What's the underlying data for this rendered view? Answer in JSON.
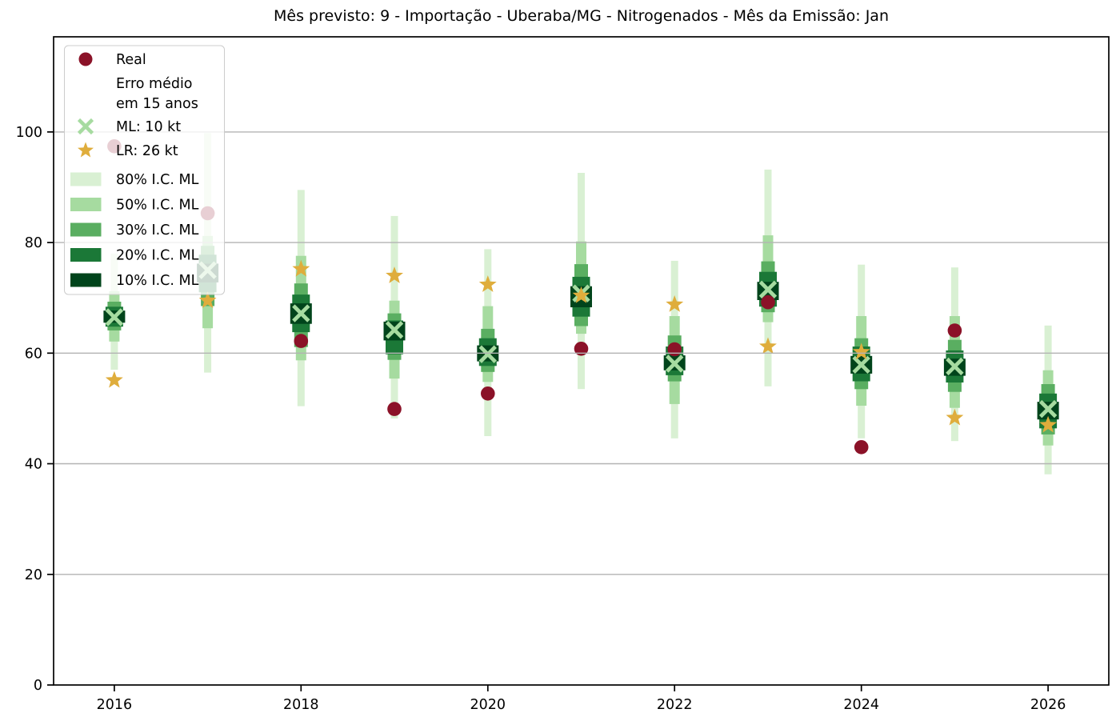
{
  "title": "Mês previsto: 9 - Importação - Uberaba/MG - Nitrogenados - Mês da Emissão: Jan",
  "colors": {
    "real": "#8b1228",
    "ml": "#a6dba0",
    "lr": "#dfad3c",
    "ci80": "#d9f0d3",
    "ci50": "#a6dba0",
    "ci30": "#5aae61",
    "ci20": "#1b7837",
    "ci10": "#00441b",
    "grid": "#b3b3b3",
    "spine": "#000000",
    "legend_border": "#cccccc"
  },
  "legend": {
    "items": [
      {
        "label": "Real",
        "marker": "circle",
        "color": "#8b1228"
      },
      {
        "label": "Erro médio em 15 anos",
        "lines": [
          "Erro médio",
          "em 15 anos"
        ],
        "marker": "none"
      },
      {
        "label": "ML: 10 kt",
        "marker": "x",
        "color": "#a6dba0"
      },
      {
        "label": "LR: 26 kt",
        "marker": "star",
        "color": "#dfad3c"
      },
      {
        "label": "80% I.C. ML",
        "marker": "patch",
        "color": "#d9f0d3"
      },
      {
        "label": "50% I.C. ML",
        "marker": "patch",
        "color": "#a6dba0"
      },
      {
        "label": "30% I.C. ML",
        "marker": "patch",
        "color": "#5aae61"
      },
      {
        "label": "20% I.C. ML",
        "marker": "patch",
        "color": "#1b7837"
      },
      {
        "label": "10% I.C. ML",
        "marker": "patch",
        "color": "#00441b"
      }
    ]
  },
  "chart_data": {
    "type": "scatter",
    "title": "Mês previsto: 9 - Importação - Uberaba/MG - Nitrogenados - Mês da Emissão: Jan",
    "xlabel": "",
    "ylabel": "",
    "x": [
      2016,
      2017,
      2018,
      2019,
      2020,
      2021,
      2022,
      2023,
      2024,
      2025,
      2026
    ],
    "xticks": [
      2016,
      2018,
      2020,
      2022,
      2024,
      2026
    ],
    "yticks": [
      0,
      20,
      40,
      60,
      80,
      100
    ],
    "xlim": [
      2015.35,
      2026.65
    ],
    "ylim": [
      0,
      117.2
    ],
    "grid": "horizontal",
    "legend_position": "upper-left",
    "series": [
      {
        "name": "Real",
        "marker": "circle",
        "color": "#8b1228",
        "values": [
          97.4,
          85.3,
          62.2,
          49.9,
          52.7,
          60.8,
          60.7,
          69.2,
          43.0,
          64.1,
          null
        ]
      },
      {
        "name": "ML: 10 kt",
        "marker": "x",
        "color": "#a6dba0",
        "values": [
          66.5,
          75.0,
          67.2,
          64.2,
          59.8,
          70.8,
          58.1,
          71.5,
          57.9,
          57.6,
          49.9
        ]
      },
      {
        "name": "LR: 26 kt",
        "marker": "star",
        "color": "#dfad3c",
        "values": [
          55.1,
          69.5,
          75.2,
          74.0,
          72.4,
          70.4,
          68.8,
          61.2,
          60.2,
          48.3,
          47.0
        ]
      }
    ],
    "intervals": [
      {
        "level": "80",
        "name": "80% I.C. ML",
        "color": "#d9f0d3",
        "lo": [
          57.0,
          56.5,
          50.4,
          48.2,
          45.0,
          53.5,
          44.6,
          54.0,
          44.6,
          44.1,
          38.1
        ],
        "hi": [
          78.0,
          99.8,
          89.5,
          84.8,
          78.8,
          92.6,
          76.7,
          93.2,
          76.0,
          75.5,
          65.0
        ]
      },
      {
        "level": "50",
        "name": "50% I.C. ML",
        "color": "#a6dba0",
        "lo": [
          62.1,
          64.5,
          58.7,
          55.4,
          54.8,
          63.5,
          50.8,
          65.6,
          50.5,
          50.1,
          43.3
        ],
        "hi": [
          71.2,
          81.2,
          77.6,
          69.5,
          68.5,
          80.2,
          66.7,
          81.3,
          66.7,
          66.7,
          56.9
        ]
      },
      {
        "level": "30",
        "name": "30% I.C. ML",
        "color": "#5aae61",
        "lo": [
          64.1,
          68.5,
          61.1,
          58.8,
          56.6,
          64.9,
          54.9,
          67.4,
          53.5,
          53.0,
          45.3
        ],
        "hi": [
          69.3,
          79.4,
          72.6,
          67.2,
          64.4,
          76.1,
          63.2,
          76.6,
          62.7,
          62.4,
          54.4
        ]
      },
      {
        "level": "20",
        "name": "20% I.C. ML",
        "color": "#1b7837",
        "lo": [
          64.8,
          71.0,
          63.8,
          59.8,
          57.7,
          66.6,
          56.0,
          68.4,
          54.9,
          54.7,
          46.4
        ],
        "hi": [
          68.4,
          77.8,
          70.6,
          65.9,
          62.7,
          73.8,
          61.2,
          74.7,
          61.2,
          60.5,
          52.7
        ]
      },
      {
        "level": "10",
        "name": "10% I.C. ML",
        "color": "#00441b",
        "lo": [
          65.5,
          72.8,
          65.3,
          62.3,
          58.5,
          68.3,
          56.9,
          69.6,
          56.3,
          55.9,
          48.0
        ],
        "hi": [
          67.7,
          76.2,
          69.0,
          65.7,
          61.4,
          72.1,
          59.6,
          72.9,
          59.5,
          59.0,
          51.2
        ]
      }
    ]
  }
}
